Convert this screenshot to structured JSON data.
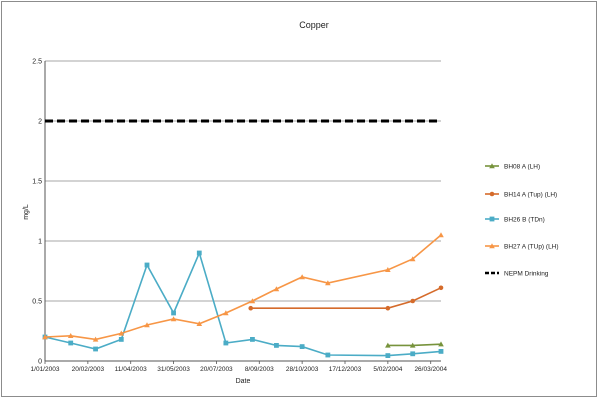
{
  "chart_data": {
    "type": "line",
    "title": "Copper",
    "xlabel": "Date",
    "ylabel": "mg/L",
    "ylim": [
      0,
      2.5
    ],
    "yticks": [
      "0",
      "0.5",
      "1",
      "1.5",
      "2",
      "2.5"
    ],
    "xlim": [
      "2003-01-01",
      "2004-04-07"
    ],
    "xticks": [
      {
        "date": "2003-01-01",
        "label": "1/01/2003"
      },
      {
        "date": "2003-02-20",
        "label": "20/02/2003"
      },
      {
        "date": "2003-04-11",
        "label": "11/04/2003"
      },
      {
        "date": "2003-05-31",
        "label": "31/05/2003"
      },
      {
        "date": "2003-07-20",
        "label": "20/07/2003"
      },
      {
        "date": "2003-09-08",
        "label": "8/09/2003"
      },
      {
        "date": "2003-10-28",
        "label": "28/10/2003"
      },
      {
        "date": "2003-12-17",
        "label": "17/12/2003"
      },
      {
        "date": "2004-02-05",
        "label": "5/02/2004"
      },
      {
        "date": "2004-03-26",
        "label": "26/03/2004"
      }
    ],
    "grid": "horizontal",
    "legend_position": "right",
    "series": [
      {
        "name": "BH08 A (LH)",
        "color": "#77933c",
        "marker": "triangle",
        "points": [
          [
            "2004-02-05",
            0.13
          ],
          [
            "2004-03-05",
            0.13
          ],
          [
            "2004-04-07",
            0.14
          ]
        ]
      },
      {
        "name": "BH14 A (Tup) (LH)",
        "color": "#d56b2b",
        "marker": "circle",
        "points": [
          [
            "2003-08-29",
            0.44
          ],
          [
            "2004-02-05",
            0.44
          ],
          [
            "2004-03-05",
            0.5
          ],
          [
            "2004-04-07",
            0.61
          ]
        ]
      },
      {
        "name": "BH26 B (TDn)",
        "color": "#4bacc6",
        "marker": "square",
        "points": [
          [
            "2003-01-01",
            0.2
          ],
          [
            "2003-01-31",
            0.15
          ],
          [
            "2003-03-01",
            0.1
          ],
          [
            "2003-03-31",
            0.18
          ],
          [
            "2003-04-30",
            0.8
          ],
          [
            "2003-05-31",
            0.4
          ],
          [
            "2003-06-30",
            0.9
          ],
          [
            "2003-07-31",
            0.15
          ],
          [
            "2003-08-31",
            0.18
          ],
          [
            "2003-09-28",
            0.13
          ],
          [
            "2003-10-28",
            0.12
          ],
          [
            "2003-11-27",
            0.05
          ],
          [
            "2004-02-05",
            0.045
          ],
          [
            "2004-03-05",
            0.06
          ],
          [
            "2004-04-07",
            0.08
          ]
        ]
      },
      {
        "name": "BH27 A (TUp) (LH)",
        "color": "#f79646",
        "marker": "triangle",
        "points": [
          [
            "2003-01-01",
            0.2
          ],
          [
            "2003-01-31",
            0.21
          ],
          [
            "2003-03-01",
            0.18
          ],
          [
            "2003-03-31",
            0.23
          ],
          [
            "2003-04-30",
            0.3
          ],
          [
            "2003-05-31",
            0.35
          ],
          [
            "2003-06-30",
            0.31
          ],
          [
            "2003-07-31",
            0.4
          ],
          [
            "2003-08-31",
            0.5
          ],
          [
            "2003-09-28",
            0.6
          ],
          [
            "2003-10-28",
            0.7
          ],
          [
            "2003-11-27",
            0.65
          ],
          [
            "2004-02-05",
            0.76
          ],
          [
            "2004-03-05",
            0.85
          ],
          [
            "2004-04-07",
            1.05
          ]
        ]
      },
      {
        "name": "NEPM Drinking",
        "color": "#000000",
        "marker": "none",
        "dashed": true,
        "points": [
          [
            "2003-01-01",
            2.0
          ],
          [
            "2004-04-07",
            2.0
          ]
        ]
      }
    ]
  }
}
